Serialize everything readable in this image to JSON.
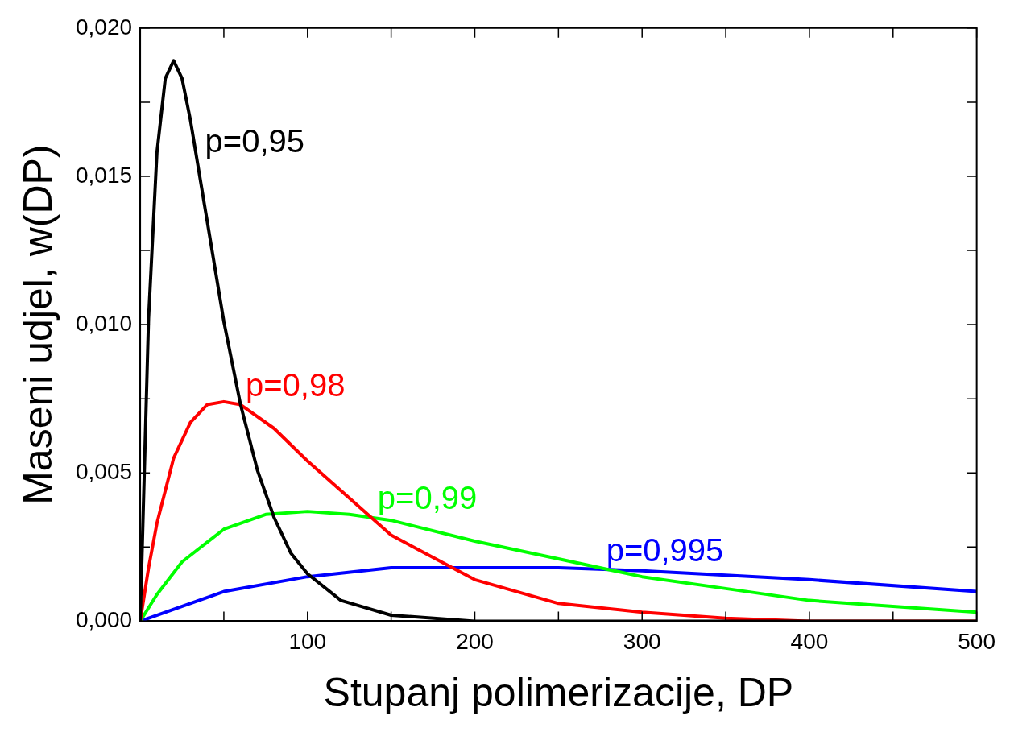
{
  "chart_data": {
    "type": "line",
    "xlabel": "Stupanj polimerizacije, DP",
    "ylabel": "Maseni udjel, w(DP)",
    "xlim": [
      0,
      500
    ],
    "ylim": [
      0,
      0.02
    ],
    "xticks": [
      {
        "value": 0,
        "label": null
      },
      {
        "value": 50,
        "label": null
      },
      100,
      {
        "value": 150,
        "label": null
      },
      200,
      {
        "value": 250,
        "label": null
      },
      300,
      {
        "value": 350,
        "label": null
      },
      400,
      {
        "value": 450,
        "label": null
      },
      500
    ],
    "yticks": [
      {
        "value": 0,
        "label": "0,000"
      },
      {
        "value": 0.0025,
        "label": null
      },
      {
        "value": 0.005,
        "label": "0,005"
      },
      {
        "value": 0.0075,
        "label": null
      },
      {
        "value": 0.01,
        "label": "0,010"
      },
      {
        "value": 0.0125,
        "label": null
      },
      {
        "value": 0.015,
        "label": "0,015"
      },
      {
        "value": 0.0175,
        "label": null
      },
      {
        "value": 0.02,
        "label": "0,020"
      }
    ],
    "grid": false,
    "legend": false,
    "series": [
      {
        "name": "p=0,95",
        "color": "#000000",
        "x": [
          0,
          5,
          10,
          15,
          20,
          25,
          30,
          40,
          50,
          60,
          70,
          80,
          90,
          100,
          120,
          150,
          200,
          500
        ],
        "values": [
          0,
          0.0102,
          0.0158,
          0.0183,
          0.0189,
          0.0183,
          0.0169,
          0.0135,
          0.0101,
          0.0073,
          0.0051,
          0.0035,
          0.0023,
          0.0016,
          0.0007,
          0.0002,
          0,
          0
        ]
      },
      {
        "name": "p=0,98",
        "color": "#ff0000",
        "x": [
          0,
          5,
          10,
          20,
          30,
          40,
          50,
          60,
          80,
          100,
          150,
          200,
          250,
          300,
          350,
          400,
          500
        ],
        "values": [
          0,
          0.0018,
          0.0033,
          0.0055,
          0.0067,
          0.0073,
          0.0074,
          0.0073,
          0.0065,
          0.0054,
          0.0029,
          0.0014,
          0.0006,
          0.0003,
          0.0001,
          0,
          0
        ]
      },
      {
        "name": "p=0,99",
        "color": "#00ff00",
        "x": [
          0,
          10,
          25,
          50,
          75,
          100,
          125,
          150,
          200,
          250,
          300,
          350,
          400,
          450,
          500
        ],
        "values": [
          0,
          0.0009,
          0.002,
          0.0031,
          0.0036,
          0.0037,
          0.0036,
          0.0034,
          0.0027,
          0.0021,
          0.0015,
          0.0011,
          0.0007,
          0.0005,
          0.0003
        ]
      },
      {
        "name": "p=0,995",
        "color": "#0000ff",
        "x": [
          0,
          50,
          100,
          150,
          200,
          250,
          300,
          400,
          500
        ],
        "values": [
          0,
          0.001,
          0.0015,
          0.0018,
          0.0018,
          0.0018,
          0.0017,
          0.0014,
          0.001
        ]
      }
    ]
  }
}
